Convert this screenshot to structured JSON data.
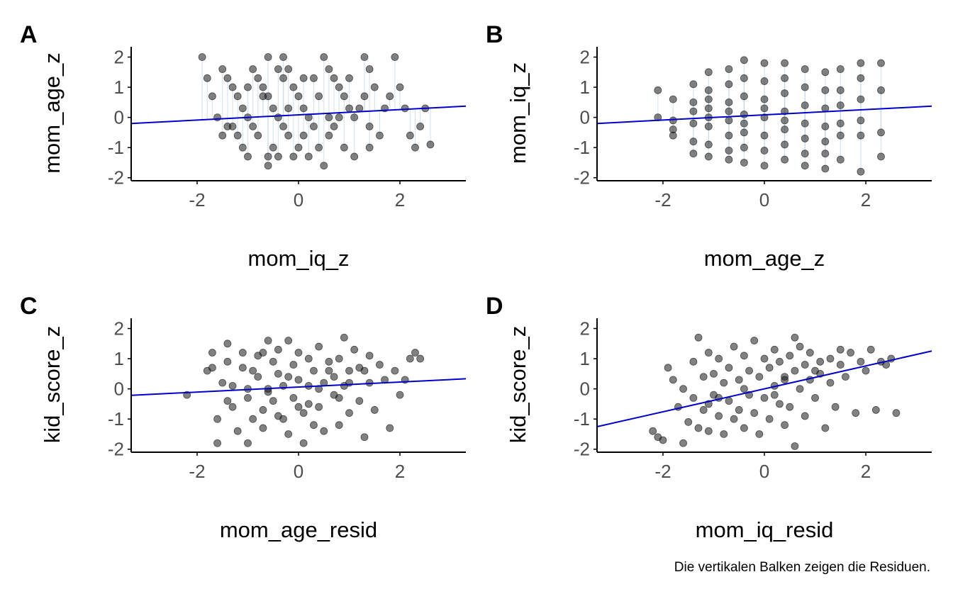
{
  "caption": "Die vertikalen Balken zeigen die Residuen.",
  "colors": {
    "points": "#1a1a1a",
    "fit_line": "#0000cc",
    "residual_bars": "#b8d0e6",
    "axis": "#000000",
    "tick_text": "#4d4d4d"
  },
  "chart_data": [
    {
      "panel": "A",
      "type": "scatter",
      "xlabel": "mom_iq_z",
      "ylabel": "mom_age_z",
      "xticks": [
        -2,
        0,
        2
      ],
      "yticks": [
        -2,
        -1,
        0,
        1,
        2
      ],
      "xlim": [
        -3.3,
        3.3
      ],
      "ylim": [
        -2.1,
        2.2
      ],
      "line": {
        "intercept": 0.085,
        "slope": 0.087
      },
      "residual_bars": true,
      "points": [
        [
          -1.9,
          2.0
        ],
        [
          -1.8,
          1.3
        ],
        [
          -1.5,
          1.6
        ],
        [
          -1.4,
          1.3
        ],
        [
          -1.3,
          1.0
        ],
        [
          -1.2,
          0.7
        ],
        [
          -1.1,
          0.3
        ],
        [
          -1.0,
          0.0
        ],
        [
          -1.3,
          -0.3
        ],
        [
          -1.2,
          -0.6
        ],
        [
          -1.1,
          -1.0
        ],
        [
          -1.0,
          -1.3
        ],
        [
          -0.9,
          1.6
        ],
        [
          -0.8,
          1.3
        ],
        [
          -0.7,
          1.0
        ],
        [
          -0.6,
          0.7
        ],
        [
          -0.5,
          0.3
        ],
        [
          -0.4,
          0.0
        ],
        [
          -0.3,
          -0.3
        ],
        [
          -0.2,
          -0.6
        ],
        [
          -0.5,
          -1.0
        ],
        [
          -0.4,
          -1.3
        ],
        [
          -0.6,
          -1.6
        ],
        [
          -0.3,
          1.3
        ],
        [
          -0.6,
          2.0
        ],
        [
          -0.3,
          2.0
        ],
        [
          -0.2,
          1.6
        ],
        [
          -0.1,
          1.0
        ],
        [
          0.0,
          0.7
        ],
        [
          0.1,
          0.3
        ],
        [
          0.2,
          0.0
        ],
        [
          0.3,
          -0.3
        ],
        [
          0.1,
          -0.6
        ],
        [
          0.0,
          -1.0
        ],
        [
          0.2,
          -1.3
        ],
        [
          0.3,
          1.3
        ],
        [
          0.5,
          2.0
        ],
        [
          0.6,
          1.6
        ],
        [
          0.7,
          1.3
        ],
        [
          0.8,
          1.0
        ],
        [
          0.9,
          0.7
        ],
        [
          1.0,
          0.3
        ],
        [
          0.8,
          0.0
        ],
        [
          0.7,
          -0.3
        ],
        [
          0.6,
          -0.6
        ],
        [
          0.9,
          -1.0
        ],
        [
          1.1,
          -1.3
        ],
        [
          0.5,
          -1.6
        ],
        [
          1.3,
          2.0
        ],
        [
          1.4,
          1.6
        ],
        [
          1.5,
          1.0
        ],
        [
          1.3,
          0.7
        ],
        [
          1.2,
          0.3
        ],
        [
          1.1,
          0.0
        ],
        [
          1.4,
          -0.3
        ],
        [
          1.6,
          -0.6
        ],
        [
          1.4,
          -1.0
        ],
        [
          1.7,
          0.3
        ],
        [
          1.8,
          0.7
        ],
        [
          1.9,
          2.0
        ],
        [
          2.0,
          1.0
        ],
        [
          2.1,
          0.3
        ],
        [
          2.2,
          -0.6
        ],
        [
          2.3,
          -1.0
        ],
        [
          2.4,
          -0.3
        ],
        [
          2.5,
          0.3
        ],
        [
          2.6,
          -0.9
        ],
        [
          -1.6,
          0.0
        ],
        [
          -1.7,
          0.7
        ],
        [
          -1.4,
          -0.3
        ],
        [
          -0.8,
          -0.6
        ],
        [
          0.4,
          0.7
        ],
        [
          -0.7,
          0.7
        ],
        [
          -0.2,
          0.3
        ],
        [
          0.1,
          1.3
        ],
        [
          -0.9,
          -0.3
        ],
        [
          -0.4,
          1.6
        ],
        [
          0.6,
          0.0
        ],
        [
          -1.5,
          -0.6
        ],
        [
          -0.1,
          -1.3
        ],
        [
          1.0,
          1.3
        ],
        [
          -0.6,
          -1.3
        ],
        [
          0.4,
          -1.0
        ],
        [
          -1.0,
          1.0
        ]
      ]
    },
    {
      "panel": "B",
      "type": "scatter",
      "xlabel": "mom_age_z",
      "ylabel": "mom_iq_z",
      "xticks": [
        -2,
        0,
        2
      ],
      "yticks": [
        -2,
        -1,
        0,
        1,
        2
      ],
      "xlim": [
        -3.3,
        3.3
      ],
      "ylim": [
        -2.1,
        2.2
      ],
      "line": {
        "intercept": 0.085,
        "slope": 0.087
      },
      "residual_bars": true,
      "points": [
        [
          -2.1,
          0.9
        ],
        [
          -2.1,
          0.0
        ],
        [
          -1.8,
          0.6
        ],
        [
          -1.8,
          -0.1
        ],
        [
          -1.8,
          -0.6
        ],
        [
          -1.8,
          -0.4
        ],
        [
          -1.4,
          1.1
        ],
        [
          -1.4,
          0.5
        ],
        [
          -1.4,
          -0.2
        ],
        [
          -1.4,
          -0.8
        ],
        [
          -1.4,
          -1.2
        ],
        [
          -1.4,
          0.2
        ],
        [
          -1.1,
          1.5
        ],
        [
          -1.1,
          0.9
        ],
        [
          -1.1,
          0.3
        ],
        [
          -1.1,
          -0.3
        ],
        [
          -1.1,
          -0.9
        ],
        [
          -1.1,
          -1.3
        ],
        [
          -1.1,
          0.0
        ],
        [
          -1.1,
          0.6
        ],
        [
          -0.7,
          1.6
        ],
        [
          -0.7,
          1.1
        ],
        [
          -0.7,
          0.5
        ],
        [
          -0.7,
          -0.1
        ],
        [
          -0.7,
          -0.6
        ],
        [
          -0.7,
          -1.1
        ],
        [
          -0.7,
          -1.4
        ],
        [
          -0.7,
          0.2
        ],
        [
          -0.4,
          1.9
        ],
        [
          -0.4,
          1.3
        ],
        [
          -0.4,
          0.7
        ],
        [
          -0.4,
          0.1
        ],
        [
          -0.4,
          -0.5
        ],
        [
          -0.4,
          -1.0
        ],
        [
          -0.4,
          -1.5
        ],
        [
          -0.4,
          -0.2
        ],
        [
          0.0,
          1.8
        ],
        [
          0.0,
          1.2
        ],
        [
          0.0,
          0.6
        ],
        [
          0.0,
          0.0
        ],
        [
          0.0,
          -0.6
        ],
        [
          0.0,
          -1.1
        ],
        [
          0.0,
          -1.6
        ],
        [
          0.0,
          0.3
        ],
        [
          0.4,
          1.8
        ],
        [
          0.4,
          1.3
        ],
        [
          0.4,
          0.8
        ],
        [
          0.4,
          0.2
        ],
        [
          0.4,
          -0.4
        ],
        [
          0.4,
          -0.9
        ],
        [
          0.4,
          -1.4
        ],
        [
          0.4,
          -0.1
        ],
        [
          0.8,
          1.6
        ],
        [
          0.8,
          1.0
        ],
        [
          0.8,
          0.4
        ],
        [
          0.8,
          -0.2
        ],
        [
          0.8,
          -0.7
        ],
        [
          0.8,
          -1.2
        ],
        [
          0.8,
          -1.6
        ],
        [
          1.2,
          1.5
        ],
        [
          1.2,
          0.9
        ],
        [
          1.2,
          0.3
        ],
        [
          1.2,
          -0.3
        ],
        [
          1.2,
          -0.8
        ],
        [
          1.2,
          -1.2
        ],
        [
          1.2,
          -1.7
        ],
        [
          1.5,
          1.6
        ],
        [
          1.5,
          0.9
        ],
        [
          1.5,
          0.4
        ],
        [
          1.5,
          -0.2
        ],
        [
          1.5,
          -0.6
        ],
        [
          1.5,
          -1.4
        ],
        [
          1.9,
          1.8
        ],
        [
          1.9,
          1.3
        ],
        [
          1.9,
          0.6
        ],
        [
          1.9,
          -0.1
        ],
        [
          1.9,
          -0.6
        ],
        [
          1.9,
          -1.8
        ],
        [
          2.3,
          1.8
        ],
        [
          2.3,
          0.9
        ],
        [
          2.3,
          -0.5
        ],
        [
          2.3,
          -1.3
        ]
      ]
    },
    {
      "panel": "C",
      "type": "scatter",
      "xlabel": "mom_age_resid",
      "ylabel": "kid_score_z",
      "xticks": [
        -2,
        0,
        2
      ],
      "yticks": [
        -2,
        -1,
        0,
        1,
        2
      ],
      "xlim": [
        -3.3,
        3.3
      ],
      "ylim": [
        -2.1,
        2.2
      ],
      "line": {
        "intercept": 0.06,
        "slope": 0.083
      },
      "residual_bars": false,
      "points": [
        [
          -2.2,
          -0.2
        ],
        [
          -1.7,
          1.2
        ],
        [
          -1.7,
          0.7
        ],
        [
          -1.6,
          -1.0
        ],
        [
          -1.6,
          -1.8
        ],
        [
          -1.5,
          0.2
        ],
        [
          -1.4,
          1.5
        ],
        [
          -1.4,
          0.9
        ],
        [
          -1.3,
          0.1
        ],
        [
          -1.3,
          -0.6
        ],
        [
          -1.2,
          -1.4
        ],
        [
          -1.1,
          1.2
        ],
        [
          -1.1,
          0.7
        ],
        [
          -1.0,
          -0.3
        ],
        [
          -1.0,
          -1.8
        ],
        [
          -0.9,
          0.6
        ],
        [
          -0.9,
          -1.0
        ],
        [
          -0.8,
          1.1
        ],
        [
          -0.8,
          0.4
        ],
        [
          -0.7,
          -0.7
        ],
        [
          -0.7,
          -1.3
        ],
        [
          -0.6,
          1.6
        ],
        [
          -0.6,
          0.0
        ],
        [
          -0.5,
          0.9
        ],
        [
          -0.5,
          -0.4
        ],
        [
          -0.4,
          1.3
        ],
        [
          -0.4,
          0.5
        ],
        [
          -0.3,
          -1.0
        ],
        [
          -0.3,
          0.1
        ],
        [
          -0.2,
          1.6
        ],
        [
          -0.2,
          -1.5
        ],
        [
          -0.1,
          0.8
        ],
        [
          -0.1,
          -0.3
        ],
        [
          0.0,
          1.2
        ],
        [
          0.0,
          0.3
        ],
        [
          0.1,
          -0.8
        ],
        [
          0.1,
          -1.8
        ],
        [
          0.2,
          1.0
        ],
        [
          0.2,
          0.1
        ],
        [
          0.3,
          -1.2
        ],
        [
          0.3,
          0.6
        ],
        [
          0.4,
          1.4
        ],
        [
          0.4,
          -0.6
        ],
        [
          0.5,
          0.2
        ],
        [
          0.5,
          -1.4
        ],
        [
          0.6,
          0.9
        ],
        [
          0.7,
          0.4
        ],
        [
          0.7,
          -0.2
        ],
        [
          0.8,
          1.0
        ],
        [
          0.8,
          -1.2
        ],
        [
          0.9,
          1.7
        ],
        [
          0.9,
          0.1
        ],
        [
          1.0,
          0.6
        ],
        [
          1.0,
          -0.8
        ],
        [
          1.1,
          1.3
        ],
        [
          1.2,
          -0.4
        ],
        [
          1.2,
          0.7
        ],
        [
          1.3,
          -1.6
        ],
        [
          1.4,
          1.1
        ],
        [
          1.4,
          0.2
        ],
        [
          1.5,
          -0.7
        ],
        [
          1.6,
          0.8
        ],
        [
          1.7,
          0.3
        ],
        [
          1.8,
          -1.3
        ],
        [
          1.9,
          0.6
        ],
        [
          2.0,
          -0.2
        ],
        [
          2.1,
          0.3
        ],
        [
          2.2,
          1.0
        ],
        [
          2.3,
          1.2
        ],
        [
          2.4,
          1.0
        ],
        [
          -1.0,
          0.0
        ],
        [
          -0.6,
          -0.1
        ],
        [
          0.6,
          0.6
        ],
        [
          -0.2,
          0.4
        ],
        [
          0.2,
          -0.5
        ],
        [
          1.0,
          0.2
        ],
        [
          -1.4,
          -0.4
        ],
        [
          -0.4,
          -0.9
        ],
        [
          0.4,
          0.0
        ],
        [
          1.3,
          0.6
        ],
        [
          -1.8,
          0.6
        ],
        [
          0.8,
          -0.3
        ],
        [
          -0.7,
          1.2
        ],
        [
          0.0,
          -0.6
        ]
      ]
    },
    {
      "panel": "D",
      "type": "scatter",
      "xlabel": "mom_iq_resid",
      "ylabel": "kid_score_z",
      "xticks": [
        -2,
        0,
        2
      ],
      "yticks": [
        -2,
        -1,
        0,
        1,
        2
      ],
      "xlim": [
        -3.3,
        3.3
      ],
      "ylim": [
        -2.1,
        2.2
      ],
      "line": {
        "intercept": 0.0,
        "slope": 0.38
      },
      "residual_bars": false,
      "points": [
        [
          -2.2,
          -1.4
        ],
        [
          -2.1,
          -1.6
        ],
        [
          -2.0,
          -1.7
        ],
        [
          -1.9,
          0.7
        ],
        [
          -1.8,
          0.3
        ],
        [
          -1.7,
          -0.6
        ],
        [
          -1.6,
          -1.8
        ],
        [
          -1.5,
          -1.1
        ],
        [
          -1.4,
          -0.3
        ],
        [
          -1.4,
          0.9
        ],
        [
          -1.3,
          -1.3
        ],
        [
          -1.3,
          1.7
        ],
        [
          -1.2,
          -0.7
        ],
        [
          -1.2,
          0.4
        ],
        [
          -1.1,
          -1.4
        ],
        [
          -1.1,
          1.2
        ],
        [
          -1.0,
          -0.2
        ],
        [
          -1.0,
          0.5
        ],
        [
          -0.9,
          -0.9
        ],
        [
          -0.9,
          1.0
        ],
        [
          -0.8,
          0.2
        ],
        [
          -0.8,
          -1.5
        ],
        [
          -0.7,
          0.7
        ],
        [
          -0.7,
          -0.4
        ],
        [
          -0.6,
          1.4
        ],
        [
          -0.6,
          -1.0
        ],
        [
          -0.5,
          0.3
        ],
        [
          -0.5,
          -0.7
        ],
        [
          -0.4,
          1.1
        ],
        [
          -0.4,
          -1.3
        ],
        [
          -0.3,
          0.6
        ],
        [
          -0.3,
          -0.2
        ],
        [
          -0.2,
          1.6
        ],
        [
          -0.2,
          -0.8
        ],
        [
          -0.1,
          0.4
        ],
        [
          -0.1,
          -1.5
        ],
        [
          0.0,
          1.0
        ],
        [
          0.0,
          -0.3
        ],
        [
          0.1,
          0.7
        ],
        [
          0.1,
          -1.0
        ],
        [
          0.2,
          1.3
        ],
        [
          0.2,
          0.1
        ],
        [
          0.3,
          -0.5
        ],
        [
          0.3,
          0.9
        ],
        [
          0.4,
          -1.2
        ],
        [
          0.4,
          0.3
        ],
        [
          0.5,
          1.1
        ],
        [
          0.5,
          -0.6
        ],
        [
          0.6,
          0.6
        ],
        [
          0.6,
          -1.9
        ],
        [
          0.7,
          1.4
        ],
        [
          0.7,
          0.0
        ],
        [
          0.8,
          -0.9
        ],
        [
          0.8,
          0.8
        ],
        [
          0.9,
          0.3
        ],
        [
          0.9,
          1.2
        ],
        [
          1.0,
          -0.3
        ],
        [
          1.1,
          0.9
        ],
        [
          1.1,
          0.5
        ],
        [
          1.2,
          -1.3
        ],
        [
          1.3,
          1.0
        ],
        [
          1.3,
          0.2
        ],
        [
          1.4,
          -0.6
        ],
        [
          1.5,
          0.8
        ],
        [
          1.6,
          0.4
        ],
        [
          1.7,
          1.2
        ],
        [
          1.8,
          -0.8
        ],
        [
          1.9,
          0.9
        ],
        [
          2.0,
          0.6
        ],
        [
          2.1,
          1.3
        ],
        [
          2.2,
          -0.7
        ],
        [
          2.3,
          0.9
        ],
        [
          2.4,
          0.8
        ],
        [
          2.5,
          1.0
        ],
        [
          2.6,
          -0.8
        ],
        [
          -1.6,
          0.0
        ],
        [
          -0.9,
          -0.3
        ],
        [
          0.2,
          -0.2
        ],
        [
          1.0,
          0.6
        ],
        [
          -0.4,
          0.0
        ],
        [
          0.6,
          1.7
        ],
        [
          1.5,
          1.3
        ],
        [
          -1.1,
          -0.5
        ],
        [
          0.4,
          0.4
        ]
      ]
    }
  ]
}
